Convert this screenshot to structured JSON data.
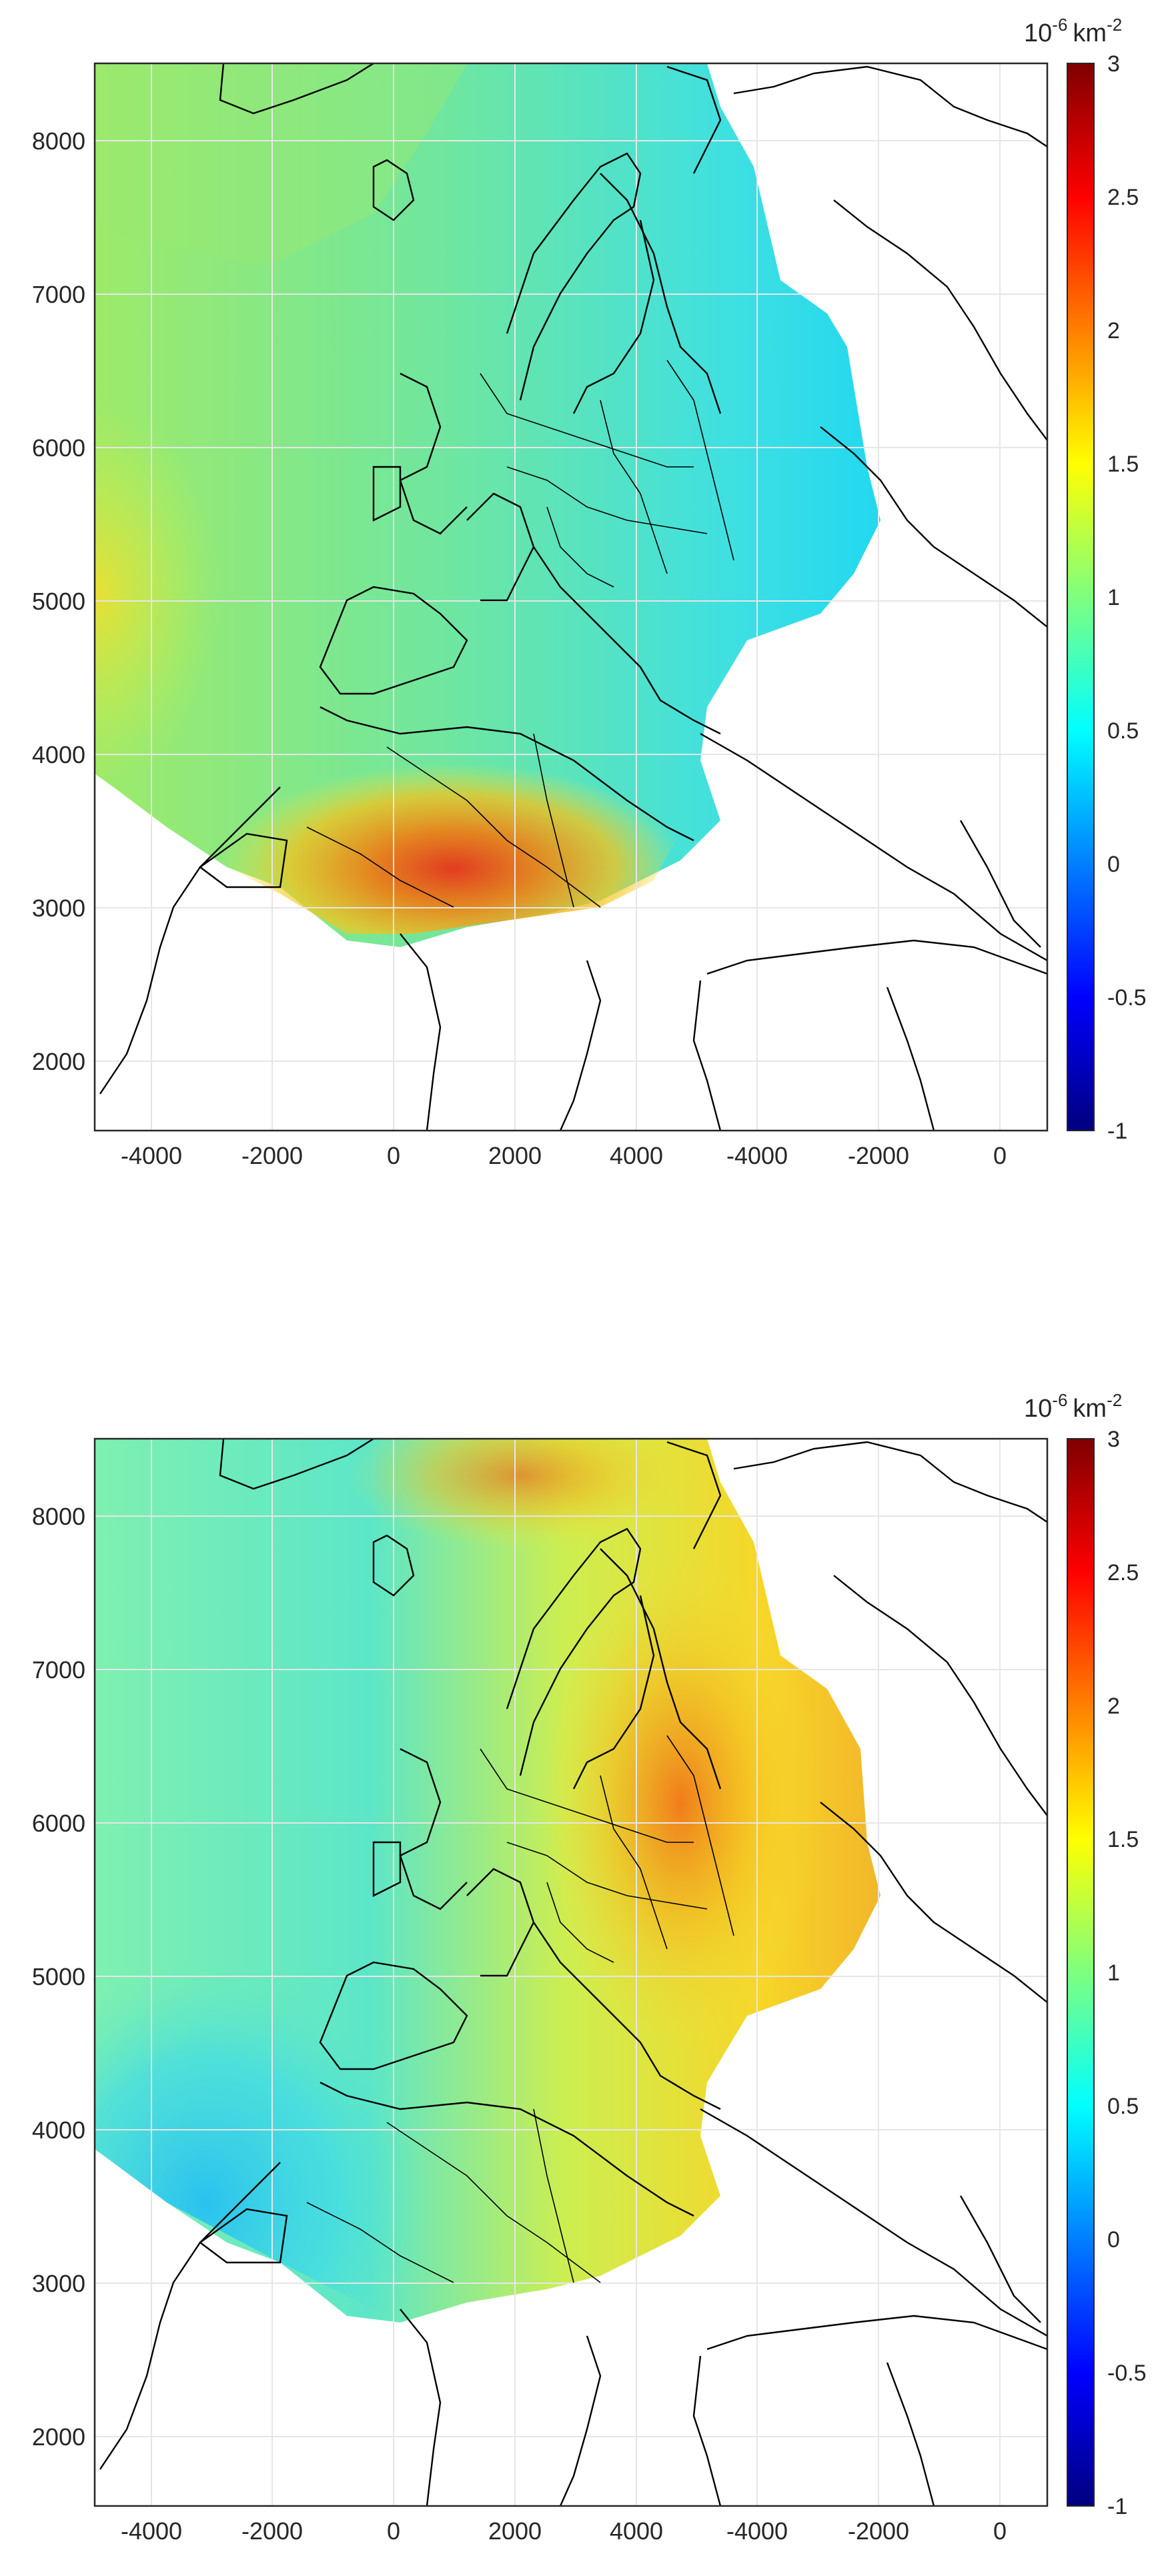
{
  "colorbar": {
    "unit_base": "10",
    "unit_exp": "-6",
    "unit_suffix": "km",
    "unit_suffix_exp": "-2",
    "ticks": [
      "3",
      "2.5",
      "2",
      "1.5",
      "1",
      "0.5",
      "0",
      "-0.5",
      "-1"
    ],
    "range": [
      -1,
      3
    ],
    "colormap": "jet"
  },
  "axes": {
    "x_ticks": [
      "-4000",
      "-2000",
      "0",
      "2000",
      "4000",
      "-4000",
      "-2000",
      "0"
    ],
    "y_ticks": [
      "8000",
      "7000",
      "6000",
      "5000",
      "4000",
      "3000",
      "2000"
    ],
    "grid": true
  },
  "panels": [
    {
      "id": "top",
      "pattern": "high-south"
    },
    {
      "id": "bottom",
      "pattern": "high-east"
    }
  ],
  "colors": {
    "coastline": "#000000",
    "grid": "#e6e6e6",
    "no_data": "#ffffff"
  }
}
